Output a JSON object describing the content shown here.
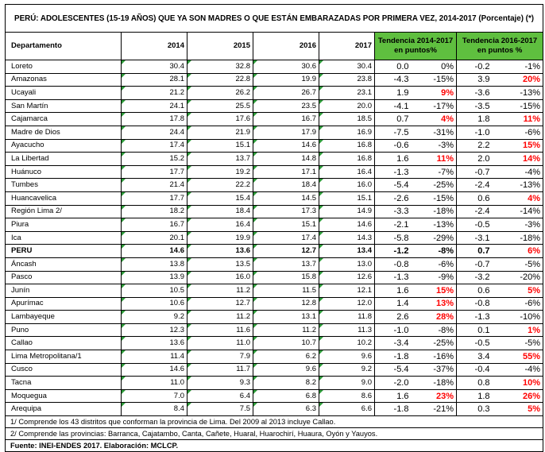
{
  "title": "PERÚ: ADOLESCENTES (15-19 AÑOS) QUE YA SON MADRES O QUE ESTÁN EMBARAZADAS POR PRIMERA VEZ,  2014-2017 (Porcentaje) (*)",
  "headers": {
    "departamento": "Departamento",
    "y2014": "2014",
    "y2015": "2015",
    "y2016": "2016",
    "y2017": "2017",
    "trend1": "Tendencia 2014-2017 en puntos%",
    "trend2": "Tendencia 2016-2017 en puntos %"
  },
  "rows": [
    {
      "dep": "Loreto",
      "v2014": "30.4",
      "v2015": "32.8",
      "v2016": "30.6",
      "v2017": "30.4",
      "t1p": "0.0",
      "t1c": "0%",
      "t1red": false,
      "t2p": "-0.2",
      "t2c": "-1%",
      "t2red": false,
      "bold": false
    },
    {
      "dep": "Amazonas",
      "v2014": "28.1",
      "v2015": "22.8",
      "v2016": "19.9",
      "v2017": "23.8",
      "t1p": "-4.3",
      "t1c": "-15%",
      "t1red": false,
      "t2p": "3.9",
      "t2c": "20%",
      "t2red": true,
      "bold": false
    },
    {
      "dep": "Ucayali",
      "v2014": "21.2",
      "v2015": "26.2",
      "v2016": "26.7",
      "v2017": "23.1",
      "t1p": "1.9",
      "t1c": "9%",
      "t1red": true,
      "t2p": "-3.6",
      "t2c": "-13%",
      "t2red": false,
      "bold": false
    },
    {
      "dep": "San Martín",
      "v2014": "24.1",
      "v2015": "25.5",
      "v2016": "23.5",
      "v2017": "20.0",
      "t1p": "-4.1",
      "t1c": "-17%",
      "t1red": false,
      "t2p": "-3.5",
      "t2c": "-15%",
      "t2red": false,
      "bold": false
    },
    {
      "dep": "Cajamarca",
      "v2014": "17.8",
      "v2015": "17.6",
      "v2016": "16.7",
      "v2017": "18.5",
      "t1p": "0.7",
      "t1c": "4%",
      "t1red": true,
      "t2p": "1.8",
      "t2c": "11%",
      "t2red": true,
      "bold": false
    },
    {
      "dep": "Madre de Dios",
      "v2014": "24.4",
      "v2015": "21.9",
      "v2016": "17.9",
      "v2017": "16.9",
      "t1p": "-7.5",
      "t1c": "-31%",
      "t1red": false,
      "t2p": "-1.0",
      "t2c": "-6%",
      "t2red": false,
      "bold": false
    },
    {
      "dep": "Ayacucho",
      "v2014": "17.4",
      "v2015": "15.1",
      "v2016": "14.6",
      "v2017": "16.8",
      "t1p": "-0.6",
      "t1c": "-3%",
      "t1red": false,
      "t2p": "2.2",
      "t2c": "15%",
      "t2red": true,
      "bold": false
    },
    {
      "dep": "La Libertad",
      "v2014": "15.2",
      "v2015": "13.7",
      "v2016": "14.8",
      "v2017": "16.8",
      "t1p": "1.6",
      "t1c": "11%",
      "t1red": true,
      "t2p": "2.0",
      "t2c": "14%",
      "t2red": true,
      "bold": false
    },
    {
      "dep": "Huánuco",
      "v2014": "17.7",
      "v2015": "19.2",
      "v2016": "17.1",
      "v2017": "16.4",
      "t1p": "-1.3",
      "t1c": "-7%",
      "t1red": false,
      "t2p": "-0.7",
      "t2c": "-4%",
      "t2red": false,
      "bold": false
    },
    {
      "dep": "Tumbes",
      "v2014": "21.4",
      "v2015": "22.2",
      "v2016": "18.4",
      "v2017": "16.0",
      "t1p": "-5.4",
      "t1c": "-25%",
      "t1red": false,
      "t2p": "-2.4",
      "t2c": "-13%",
      "t2red": false,
      "bold": false
    },
    {
      "dep": "Huancavelica",
      "v2014": "17.7",
      "v2015": "15.4",
      "v2016": "14.5",
      "v2017": "15.1",
      "t1p": "-2.6",
      "t1c": "-15%",
      "t1red": false,
      "t2p": "0.6",
      "t2c": "4%",
      "t2red": true,
      "bold": false
    },
    {
      "dep": "Región Lima 2/",
      "v2014": "18.2",
      "v2015": "18.4",
      "v2016": "17.3",
      "v2017": "14.9",
      "t1p": "-3.3",
      "t1c": "-18%",
      "t1red": false,
      "t2p": "-2.4",
      "t2c": "-14%",
      "t2red": false,
      "bold": false
    },
    {
      "dep": "Piura",
      "v2014": "16.7",
      "v2015": "16.4",
      "v2016": "15.1",
      "v2017": "14.6",
      "t1p": "-2.1",
      "t1c": "-13%",
      "t1red": false,
      "t2p": "-0.5",
      "t2c": "-3%",
      "t2red": false,
      "bold": false
    },
    {
      "dep": "Ica",
      "v2014": "20.1",
      "v2015": "19.9",
      "v2016": "17.4",
      "v2017": "14.3",
      "t1p": "-5.8",
      "t1c": "-29%",
      "t1red": false,
      "t2p": "-3.1",
      "t2c": "-18%",
      "t2red": false,
      "bold": false
    },
    {
      "dep": "PERU",
      "v2014": "14.6",
      "v2015": "13.6",
      "v2016": "12.7",
      "v2017": "13.4",
      "t1p": "-1.2",
      "t1c": "-8%",
      "t1red": false,
      "t2p": "0.7",
      "t2c": "6%",
      "t2red": true,
      "bold": true
    },
    {
      "dep": "Áncash",
      "v2014": "13.8",
      "v2015": "13.5",
      "v2016": "13.7",
      "v2017": "13.0",
      "t1p": "-0.8",
      "t1c": "-6%",
      "t1red": false,
      "t2p": "-0.7",
      "t2c": "-5%",
      "t2red": false,
      "bold": false
    },
    {
      "dep": "Pasco",
      "v2014": "13.9",
      "v2015": "16.0",
      "v2016": "15.8",
      "v2017": "12.6",
      "t1p": "-1.3",
      "t1c": "-9%",
      "t1red": false,
      "t2p": "-3.2",
      "t2c": "-20%",
      "t2red": false,
      "bold": false
    },
    {
      "dep": "Junín",
      "v2014": "10.5",
      "v2015": "11.2",
      "v2016": "11.5",
      "v2017": "12.1",
      "t1p": "1.6",
      "t1c": "15%",
      "t1red": true,
      "t2p": "0.6",
      "t2c": "5%",
      "t2red": true,
      "bold": false
    },
    {
      "dep": "Apurímac",
      "v2014": "10.6",
      "v2015": "12.7",
      "v2016": "12.8",
      "v2017": "12.0",
      "t1p": "1.4",
      "t1c": "13%",
      "t1red": true,
      "t2p": "-0.8",
      "t2c": "-6%",
      "t2red": false,
      "bold": false
    },
    {
      "dep": "Lambayeque",
      "v2014": "9.2",
      "v2015": "11.2",
      "v2016": "13.1",
      "v2017": "11.8",
      "t1p": "2.6",
      "t1c": "28%",
      "t1red": true,
      "t2p": "-1.3",
      "t2c": "-10%",
      "t2red": false,
      "bold": false
    },
    {
      "dep": "Puno",
      "v2014": "12.3",
      "v2015": "11.6",
      "v2016": "11.2",
      "v2017": "11.3",
      "t1p": "-1.0",
      "t1c": "-8%",
      "t1red": false,
      "t2p": "0.1",
      "t2c": "1%",
      "t2red": true,
      "bold": false
    },
    {
      "dep": "Callao",
      "v2014": "13.6",
      "v2015": "11.0",
      "v2016": "10.7",
      "v2017": "10.2",
      "t1p": "-3.4",
      "t1c": "-25%",
      "t1red": false,
      "t2p": "-0.5",
      "t2c": "-5%",
      "t2red": false,
      "bold": false
    },
    {
      "dep": "Lima Metropolitana/1",
      "v2014": "11.4",
      "v2015": "7.9",
      "v2016": "6.2",
      "v2017": "9.6",
      "t1p": "-1.8",
      "t1c": "-16%",
      "t1red": false,
      "t2p": "3.4",
      "t2c": "55%",
      "t2red": true,
      "bold": false
    },
    {
      "dep": "Cusco",
      "v2014": "14.6",
      "v2015": "11.7",
      "v2016": "9.6",
      "v2017": "9.2",
      "t1p": "-5.4",
      "t1c": "-37%",
      "t1red": false,
      "t2p": "-0.4",
      "t2c": "-4%",
      "t2red": false,
      "bold": false
    },
    {
      "dep": "Tacna",
      "v2014": "11.0",
      "v2015": "9.3",
      "v2016": "8.2",
      "v2017": "9.0",
      "t1p": "-2.0",
      "t1c": "-18%",
      "t1red": false,
      "t2p": "0.8",
      "t2c": "10%",
      "t2red": true,
      "bold": false
    },
    {
      "dep": "Moquegua",
      "v2014": "7.0",
      "v2015": "6.4",
      "v2016": "6.8",
      "v2017": "8.6",
      "t1p": "1.6",
      "t1c": "23%",
      "t1red": true,
      "t2p": "1.8",
      "t2c": "26%",
      "t2red": true,
      "bold": false
    },
    {
      "dep": "Arequipa",
      "v2014": "8.4",
      "v2015": "7.5",
      "v2016": "6.3",
      "v2017": "6.6",
      "t1p": "-1.8",
      "t1c": "-21%",
      "t1red": false,
      "t2p": "0.3",
      "t2c": "5%",
      "t2red": true,
      "bold": false
    }
  ],
  "notes": [
    "1/ Comprende los 43 distritos que conforman la provincia de Lima. Del 2009 al 2013 incluye Callao.",
    "2/ Comprende las provincias: Barranca, Cajatambo, Canta, Cañete, Huaral, Huarochirí, Huaura, Oyón y Yauyos."
  ],
  "source": "Fuente: INEI-ENDES 2017. Elaboración: MCLCP."
}
